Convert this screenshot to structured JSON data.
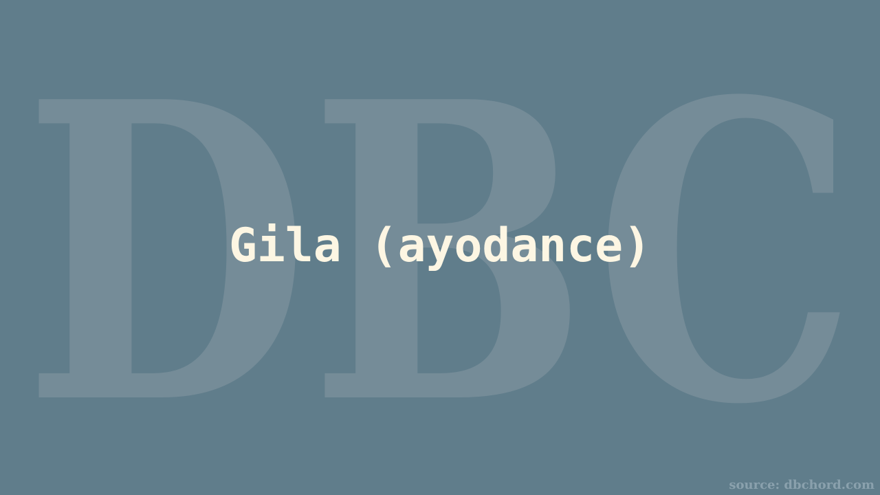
{
  "page": {
    "background_color": "#607d8b"
  },
  "watermark": {
    "text": "DBC",
    "color": "#758c98"
  },
  "title": {
    "text": "Gila (ayodance)",
    "color": "#fdf6e3"
  },
  "source": {
    "text": "source: dbchord.com",
    "color": "#8aa1ad"
  }
}
